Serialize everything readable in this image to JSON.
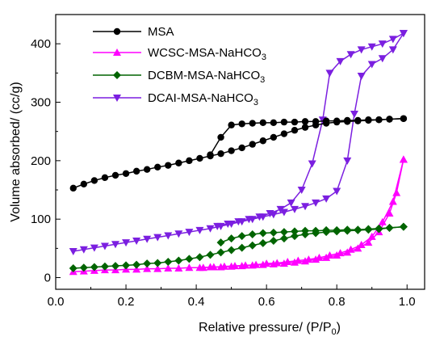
{
  "chart_data": {
    "type": "line",
    "title": "",
    "xlabel": "Relative pressure/ (P/P",
    "xlabel_sub": "0",
    "xlabel_end": ")",
    "ylabel": "Volume absorbed/ (cc/g)",
    "xlim": [
      0.0,
      1.05
    ],
    "ylim": [
      -20,
      450
    ],
    "xticks": [
      0.0,
      0.2,
      0.4,
      0.6,
      0.8,
      1.0
    ],
    "xtick_labels": [
      "0.0",
      "0.2",
      "0.4",
      "0.6",
      "0.8",
      "1.0"
    ],
    "yticks": [
      0,
      100,
      200,
      300,
      400
    ],
    "ytick_labels": [
      "0",
      "100",
      "200",
      "300",
      "400"
    ],
    "grid": false,
    "legend_position": "top-left",
    "series": [
      {
        "name": "MSA",
        "legend_main": "MSA",
        "legend_sub": "",
        "color": "#000000",
        "marker": "circle",
        "adsorption": [
          [
            0.05,
            153
          ],
          [
            0.08,
            160
          ],
          [
            0.11,
            166
          ],
          [
            0.14,
            171
          ],
          [
            0.17,
            175
          ],
          [
            0.2,
            178
          ],
          [
            0.23,
            182
          ],
          [
            0.26,
            185
          ],
          [
            0.29,
            189
          ],
          [
            0.32,
            192
          ],
          [
            0.35,
            196
          ],
          [
            0.38,
            200
          ],
          [
            0.41,
            204
          ],
          [
            0.44,
            208
          ],
          [
            0.47,
            212
          ],
          [
            0.5,
            217
          ],
          [
            0.53,
            222
          ],
          [
            0.56,
            228
          ],
          [
            0.59,
            234
          ],
          [
            0.62,
            240
          ],
          [
            0.65,
            246
          ],
          [
            0.68,
            252
          ],
          [
            0.71,
            257
          ],
          [
            0.74,
            261
          ],
          [
            0.77,
            264
          ],
          [
            0.8,
            266
          ],
          [
            0.83,
            267
          ],
          [
            0.86,
            268
          ],
          [
            0.89,
            269
          ],
          [
            0.92,
            270
          ],
          [
            0.95,
            271
          ],
          [
            0.99,
            272
          ]
        ],
        "desorption": [
          [
            0.99,
            272
          ],
          [
            0.95,
            271
          ],
          [
            0.92,
            270
          ],
          [
            0.89,
            270
          ],
          [
            0.86,
            269
          ],
          [
            0.83,
            269
          ],
          [
            0.8,
            268
          ],
          [
            0.77,
            268
          ],
          [
            0.74,
            267
          ],
          [
            0.71,
            267
          ],
          [
            0.68,
            266
          ],
          [
            0.65,
            266
          ],
          [
            0.62,
            265
          ],
          [
            0.59,
            265
          ],
          [
            0.56,
            264
          ],
          [
            0.53,
            263
          ],
          [
            0.5,
            261
          ],
          [
            0.47,
            240
          ],
          [
            0.44,
            210
          ]
        ]
      },
      {
        "name": "WCSC-MSA-NaHCO3",
        "legend_main": "WCSC-MSA-NaHCO",
        "legend_sub": "3",
        "color": "#ff00ff",
        "marker": "triangle-up",
        "adsorption": [
          [
            0.05,
            10
          ],
          [
            0.08,
            11
          ],
          [
            0.11,
            12
          ],
          [
            0.14,
            13
          ],
          [
            0.17,
            13
          ],
          [
            0.2,
            14
          ],
          [
            0.23,
            14
          ],
          [
            0.26,
            15
          ],
          [
            0.29,
            15
          ],
          [
            0.32,
            16
          ],
          [
            0.35,
            16
          ],
          [
            0.38,
            17
          ],
          [
            0.41,
            17
          ],
          [
            0.44,
            18
          ],
          [
            0.47,
            18
          ],
          [
            0.5,
            19
          ],
          [
            0.53,
            20
          ],
          [
            0.56,
            21
          ],
          [
            0.59,
            22
          ],
          [
            0.62,
            23
          ],
          [
            0.65,
            24
          ],
          [
            0.68,
            26
          ],
          [
            0.71,
            28
          ],
          [
            0.74,
            31
          ],
          [
            0.77,
            34
          ],
          [
            0.8,
            38
          ],
          [
            0.83,
            43
          ],
          [
            0.86,
            50
          ],
          [
            0.89,
            60
          ],
          [
            0.92,
            78
          ],
          [
            0.95,
            110
          ],
          [
            0.97,
            145
          ],
          [
            0.99,
            202
          ]
        ],
        "desorption": [
          [
            0.99,
            202
          ],
          [
            0.96,
            130
          ],
          [
            0.93,
            95
          ],
          [
            0.9,
            70
          ],
          [
            0.87,
            56
          ],
          [
            0.84,
            48
          ],
          [
            0.81,
            42
          ],
          [
            0.78,
            38
          ],
          [
            0.75,
            34
          ],
          [
            0.72,
            31
          ],
          [
            0.69,
            29
          ],
          [
            0.66,
            27
          ],
          [
            0.63,
            25
          ],
          [
            0.6,
            24
          ],
          [
            0.57,
            22
          ],
          [
            0.54,
            21
          ],
          [
            0.51,
            20
          ],
          [
            0.48,
            19
          ],
          [
            0.45,
            18
          ],
          [
            0.42,
            17
          ]
        ]
      },
      {
        "name": "DCBM-MSA-NaHCO3",
        "legend_main": "DCBM-MSA-NaHCO",
        "legend_sub": "3",
        "color": "#006400",
        "marker": "diamond",
        "adsorption": [
          [
            0.05,
            16
          ],
          [
            0.08,
            17
          ],
          [
            0.11,
            18
          ],
          [
            0.14,
            19
          ],
          [
            0.17,
            20
          ],
          [
            0.2,
            21
          ],
          [
            0.23,
            22
          ],
          [
            0.26,
            24
          ],
          [
            0.29,
            25
          ],
          [
            0.32,
            27
          ],
          [
            0.35,
            29
          ],
          [
            0.38,
            32
          ],
          [
            0.41,
            35
          ],
          [
            0.44,
            39
          ],
          [
            0.47,
            43
          ],
          [
            0.5,
            47
          ],
          [
            0.53,
            51
          ],
          [
            0.56,
            55
          ],
          [
            0.59,
            59
          ],
          [
            0.62,
            63
          ],
          [
            0.65,
            67
          ],
          [
            0.68,
            71
          ],
          [
            0.71,
            74
          ],
          [
            0.74,
            76
          ],
          [
            0.77,
            78
          ],
          [
            0.8,
            79
          ],
          [
            0.83,
            80
          ],
          [
            0.86,
            81
          ],
          [
            0.89,
            82
          ],
          [
            0.92,
            83
          ],
          [
            0.95,
            85
          ],
          [
            0.99,
            87
          ]
        ],
        "desorption": [
          [
            0.99,
            87
          ],
          [
            0.95,
            85
          ],
          [
            0.92,
            84
          ],
          [
            0.89,
            83
          ],
          [
            0.86,
            82
          ],
          [
            0.83,
            82
          ],
          [
            0.8,
            81
          ],
          [
            0.77,
            81
          ],
          [
            0.74,
            80
          ],
          [
            0.71,
            80
          ],
          [
            0.68,
            79
          ],
          [
            0.65,
            78
          ],
          [
            0.62,
            77
          ],
          [
            0.59,
            76
          ],
          [
            0.56,
            74
          ],
          [
            0.53,
            71
          ],
          [
            0.5,
            67
          ],
          [
            0.47,
            60
          ]
        ]
      },
      {
        "name": "DCAI-MSA-NaHCO3",
        "legend_main": "DCAI-MSA-NaHCO",
        "legend_sub": "3",
        "color": "#7b1fe0",
        "marker": "triangle-down",
        "adsorption": [
          [
            0.05,
            45
          ],
          [
            0.08,
            48
          ],
          [
            0.11,
            51
          ],
          [
            0.14,
            54
          ],
          [
            0.17,
            57
          ],
          [
            0.2,
            60
          ],
          [
            0.23,
            63
          ],
          [
            0.26,
            66
          ],
          [
            0.29,
            69
          ],
          [
            0.32,
            72
          ],
          [
            0.35,
            75
          ],
          [
            0.38,
            78
          ],
          [
            0.41,
            81
          ],
          [
            0.44,
            84
          ],
          [
            0.47,
            88
          ],
          [
            0.5,
            92
          ],
          [
            0.53,
            96
          ],
          [
            0.56,
            100
          ],
          [
            0.59,
            104
          ],
          [
            0.62,
            108
          ],
          [
            0.65,
            112
          ],
          [
            0.68,
            117
          ],
          [
            0.71,
            122
          ],
          [
            0.74,
            128
          ],
          [
            0.77,
            135
          ],
          [
            0.8,
            148
          ],
          [
            0.83,
            200
          ],
          [
            0.85,
            280
          ],
          [
            0.87,
            345
          ],
          [
            0.9,
            365
          ],
          [
            0.93,
            375
          ],
          [
            0.96,
            390
          ],
          [
            0.99,
            418
          ]
        ],
        "desorption": [
          [
            0.99,
            418
          ],
          [
            0.96,
            408
          ],
          [
            0.93,
            400
          ],
          [
            0.9,
            395
          ],
          [
            0.87,
            390
          ],
          [
            0.84,
            382
          ],
          [
            0.81,
            370
          ],
          [
            0.78,
            350
          ],
          [
            0.76,
            270
          ],
          [
            0.73,
            195
          ],
          [
            0.7,
            150
          ],
          [
            0.67,
            128
          ],
          [
            0.64,
            117
          ],
          [
            0.61,
            110
          ],
          [
            0.58,
            104
          ],
          [
            0.55,
            100
          ],
          [
            0.52,
            96
          ],
          [
            0.49,
            92
          ],
          [
            0.46,
            88
          ]
        ]
      }
    ]
  }
}
